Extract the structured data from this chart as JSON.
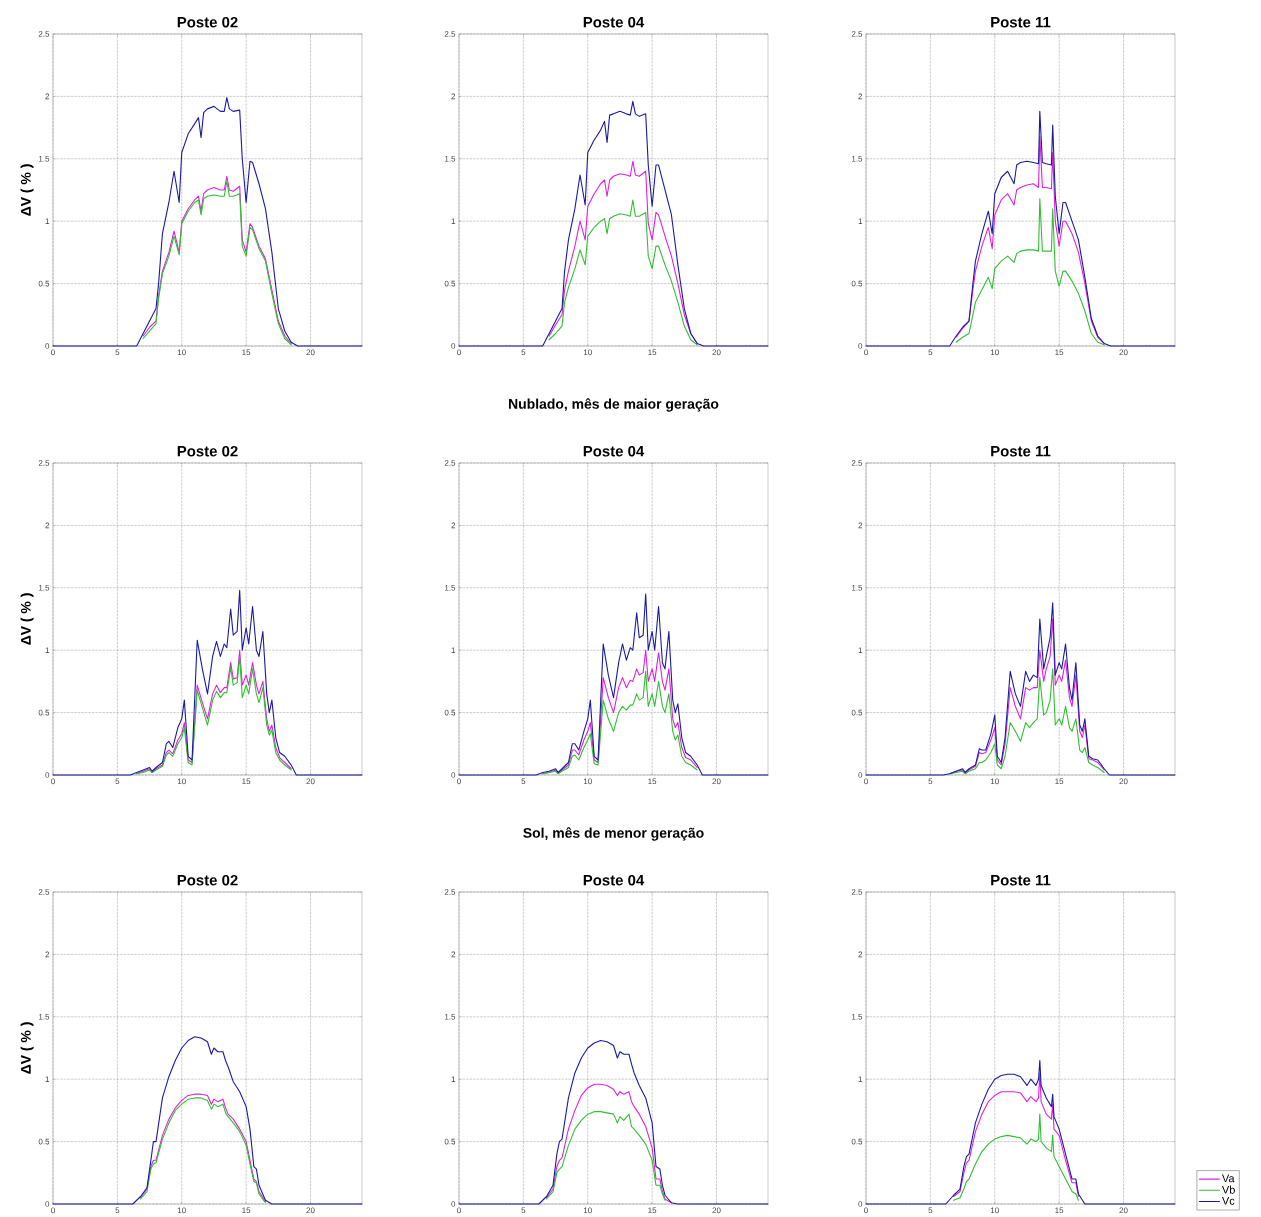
{
  "chart_data": [
    {
      "type": "line",
      "title": "Poste 02",
      "ylabel": "ΔV ( % )",
      "xlim": [
        0,
        24
      ],
      "ylim": [
        0,
        2.5
      ],
      "xticks": [
        0,
        5,
        10,
        15,
        20
      ],
      "yticks": [
        0,
        0.5,
        1,
        1.5,
        2,
        2.5
      ],
      "grid": true,
      "line_style": "solid",
      "x": [
        0,
        6.5,
        7,
        7.5,
        8,
        8.2,
        8.5,
        9,
        9.4,
        9.8,
        10,
        10.5,
        11,
        11.3,
        11.5,
        11.7,
        12,
        12.5,
        13,
        13.3,
        13.5,
        13.7,
        14,
        14.5,
        14.7,
        15,
        15.3,
        15.5,
        16,
        16.5,
        17,
        17.5,
        18,
        18.5,
        19,
        24
      ],
      "series": [
        {
          "color": "#e020e0",
          "values": [
            null,
            null,
            0.08,
            0.15,
            0.2,
            0.4,
            0.6,
            0.75,
            0.92,
            0.75,
            1.0,
            1.1,
            1.17,
            1.2,
            1.08,
            1.22,
            1.25,
            1.27,
            1.25,
            1.25,
            1.36,
            1.25,
            1.24,
            1.28,
            0.85,
            0.75,
            0.98,
            0.95,
            0.8,
            0.7,
            0.45,
            0.2,
            0.08,
            0.02,
            null,
            null
          ]
        },
        {
          "color": "#30c030",
          "values": [
            null,
            null,
            0.06,
            0.12,
            0.18,
            0.38,
            0.58,
            0.72,
            0.88,
            0.73,
            0.98,
            1.08,
            1.15,
            1.17,
            1.05,
            1.18,
            1.2,
            1.21,
            1.2,
            1.2,
            1.32,
            1.2,
            1.2,
            1.22,
            0.8,
            0.72,
            0.95,
            0.93,
            0.78,
            0.68,
            0.42,
            0.18,
            0.06,
            0.01,
            null,
            null
          ]
        },
        {
          "color": "#1a1aa0",
          "values": [
            0,
            0,
            0.1,
            0.2,
            0.3,
            0.5,
            0.9,
            1.15,
            1.4,
            1.15,
            1.55,
            1.7,
            1.78,
            1.83,
            1.67,
            1.87,
            1.9,
            1.92,
            1.88,
            1.88,
            1.99,
            1.9,
            1.88,
            1.89,
            1.5,
            1.15,
            1.48,
            1.47,
            1.3,
            1.1,
            0.75,
            0.3,
            0.12,
            0.03,
            0,
            0
          ]
        }
      ]
    },
    {
      "type": "line",
      "title": "Poste 04",
      "xlim": [
        0,
        24
      ],
      "ylim": [
        0,
        2.5
      ],
      "xticks": [
        0,
        5,
        10,
        15,
        20
      ],
      "yticks": [
        0,
        0.5,
        1,
        1.5,
        2,
        2.5
      ],
      "grid": true,
      "line_style": "solid",
      "x": [
        0,
        6.5,
        7,
        7.5,
        8,
        8.2,
        8.5,
        9,
        9.4,
        9.8,
        10,
        10.5,
        11,
        11.3,
        11.5,
        11.7,
        12,
        12.5,
        13,
        13.3,
        13.5,
        13.7,
        14,
        14.5,
        14.7,
        15,
        15.3,
        15.5,
        16,
        16.5,
        17,
        17.5,
        18,
        18.5,
        19,
        24
      ],
      "series": [
        {
          "color": "#e020e0",
          "values": [
            null,
            null,
            0.08,
            0.17,
            0.25,
            0.45,
            0.6,
            0.8,
            1.0,
            0.85,
            1.12,
            1.22,
            1.3,
            1.33,
            1.2,
            1.33,
            1.36,
            1.38,
            1.37,
            1.36,
            1.48,
            1.37,
            1.36,
            1.4,
            0.98,
            0.85,
            1.07,
            1.05,
            0.88,
            0.72,
            0.5,
            0.25,
            0.1,
            0.02,
            null,
            null
          ]
        },
        {
          "color": "#30c030",
          "values": [
            null,
            null,
            0.05,
            0.1,
            0.16,
            0.35,
            0.47,
            0.62,
            0.77,
            0.65,
            0.88,
            0.95,
            1.0,
            1.02,
            0.9,
            1.02,
            1.04,
            1.06,
            1.05,
            1.04,
            1.17,
            1.04,
            1.04,
            1.07,
            0.72,
            0.62,
            0.8,
            0.8,
            0.65,
            0.52,
            0.35,
            0.16,
            0.05,
            0.01,
            null,
            null
          ]
        },
        {
          "color": "#1a1aa0",
          "values": [
            0,
            0,
            0.1,
            0.2,
            0.3,
            0.6,
            0.85,
            1.1,
            1.37,
            1.13,
            1.55,
            1.65,
            1.73,
            1.8,
            1.63,
            1.85,
            1.86,
            1.88,
            1.86,
            1.85,
            1.96,
            1.86,
            1.84,
            1.86,
            1.45,
            1.12,
            1.45,
            1.45,
            1.25,
            1.05,
            0.65,
            0.3,
            0.1,
            0.02,
            0,
            0
          ]
        }
      ]
    },
    {
      "type": "line",
      "title": "Poste 11",
      "xlim": [
        0,
        24
      ],
      "ylim": [
        0,
        2.5
      ],
      "xticks": [
        0,
        5,
        10,
        15,
        20
      ],
      "yticks": [
        0,
        0.5,
        1,
        1.5,
        2,
        2.5
      ],
      "grid": true,
      "line_style": "solid",
      "x": [
        0,
        6.5,
        7,
        7.5,
        8,
        8.3,
        8.5,
        9,
        9.5,
        9.8,
        10,
        10.5,
        11,
        11.5,
        11.7,
        12,
        12.5,
        13,
        13.4,
        13.5,
        13.7,
        14,
        14.4,
        14.5,
        14.7,
        15,
        15.3,
        15.5,
        16,
        16.5,
        17,
        17.5,
        18,
        18.5,
        19,
        24
      ],
      "series": [
        {
          "color": "#e020e0",
          "values": [
            null,
            null,
            0.07,
            0.14,
            0.2,
            0.45,
            0.6,
            0.8,
            0.95,
            0.78,
            1.05,
            1.17,
            1.22,
            1.13,
            1.25,
            1.27,
            1.29,
            1.3,
            1.27,
            1.68,
            1.27,
            1.27,
            1.26,
            1.55,
            1.0,
            0.8,
            1.0,
            1.0,
            0.9,
            0.75,
            0.5,
            0.2,
            0.07,
            0.02,
            null,
            null
          ]
        },
        {
          "color": "#30c030",
          "values": [
            null,
            null,
            0.03,
            0.07,
            0.1,
            0.25,
            0.35,
            0.45,
            0.55,
            0.46,
            0.62,
            0.68,
            0.72,
            0.67,
            0.74,
            0.76,
            0.77,
            0.77,
            0.76,
            1.18,
            0.76,
            0.76,
            0.76,
            1.1,
            0.6,
            0.48,
            0.6,
            0.6,
            0.52,
            0.42,
            0.28,
            0.1,
            0.03,
            0.01,
            null,
            null
          ]
        },
        {
          "color": "#1a1aa0",
          "values": [
            0,
            0,
            0.08,
            0.15,
            0.2,
            0.5,
            0.68,
            0.9,
            1.08,
            0.9,
            1.22,
            1.35,
            1.4,
            1.3,
            1.45,
            1.47,
            1.48,
            1.47,
            1.46,
            1.88,
            1.47,
            1.46,
            1.45,
            1.77,
            1.2,
            0.9,
            1.15,
            1.15,
            1.0,
            0.85,
            0.55,
            0.22,
            0.08,
            0.02,
            0,
            0
          ]
        }
      ]
    },
    {
      "type": "line",
      "title": "Poste 02",
      "ylabel": "ΔV ( % )",
      "xlim": [
        0,
        24
      ],
      "ylim": [
        0,
        2.5
      ],
      "xticks": [
        0,
        5,
        10,
        15,
        20
      ],
      "yticks": [
        0,
        0.5,
        1,
        1.5,
        2,
        2.5
      ],
      "grid": true,
      "line_style": "solid",
      "x": [
        0,
        6,
        6.5,
        7,
        7.5,
        7.7,
        8,
        8.5,
        8.8,
        9,
        9.3,
        9.7,
        10,
        10.2,
        10.5,
        10.8,
        11.2,
        11.6,
        12,
        12.4,
        12.7,
        13,
        13.3,
        13.5,
        13.8,
        14,
        14.3,
        14.5,
        14.7,
        15,
        15.2,
        15.5,
        15.8,
        16,
        16.3,
        16.6,
        16.8,
        17,
        17.3,
        17.6,
        18,
        18.5,
        18.9,
        24
      ],
      "series": [
        {
          "color": "#e020e0",
          "values": [
            null,
            null,
            0.01,
            0.03,
            0.05,
            0.02,
            0.05,
            0.08,
            0.18,
            0.2,
            0.17,
            0.28,
            0.33,
            0.42,
            0.12,
            0.1,
            0.72,
            0.58,
            0.45,
            0.65,
            0.72,
            0.66,
            0.7,
            0.7,
            0.9,
            0.77,
            0.78,
            1.0,
            0.72,
            0.8,
            0.72,
            0.9,
            0.72,
            0.65,
            0.75,
            0.45,
            0.35,
            0.4,
            0.22,
            0.14,
            0.1,
            0.05,
            null,
            null
          ]
        },
        {
          "color": "#30c030",
          "values": [
            null,
            null,
            0.01,
            0.02,
            0.04,
            0.02,
            0.04,
            0.07,
            0.16,
            0.18,
            0.15,
            0.25,
            0.3,
            0.38,
            0.1,
            0.08,
            0.68,
            0.54,
            0.4,
            0.6,
            0.67,
            0.62,
            0.66,
            0.66,
            0.86,
            0.72,
            0.74,
            0.95,
            0.62,
            0.72,
            0.65,
            0.85,
            0.65,
            0.58,
            0.7,
            0.4,
            0.32,
            0.36,
            0.18,
            0.12,
            0.08,
            0.04,
            null,
            null
          ]
        },
        {
          "color": "#1a1aa0",
          "values": [
            0,
            0,
            0.02,
            0.04,
            0.06,
            0.03,
            0.06,
            0.1,
            0.25,
            0.27,
            0.22,
            0.38,
            0.45,
            0.6,
            0.15,
            0.12,
            1.08,
            0.85,
            0.65,
            0.95,
            1.07,
            0.95,
            1.05,
            1.02,
            1.33,
            1.12,
            1.15,
            1.48,
            1.0,
            1.18,
            1.05,
            1.35,
            1.0,
            0.95,
            1.15,
            0.65,
            0.5,
            0.6,
            0.3,
            0.18,
            0.15,
            0.08,
            0,
            0
          ]
        }
      ]
    },
    {
      "type": "line",
      "title": "Poste 04",
      "subtitle": "Nublado, mês de maior geração",
      "xlim": [
        0,
        24
      ],
      "ylim": [
        0,
        2.5
      ],
      "xticks": [
        0,
        5,
        10,
        15,
        20
      ],
      "yticks": [
        0,
        0.5,
        1,
        1.5,
        2,
        2.5
      ],
      "grid": true,
      "line_style": "solid",
      "x": [
        0,
        6,
        6.5,
        7,
        7.5,
        7.7,
        8,
        8.5,
        8.8,
        9,
        9.3,
        9.7,
        10,
        10.2,
        10.5,
        10.8,
        11.2,
        11.6,
        12,
        12.4,
        12.7,
        13,
        13.3,
        13.5,
        13.8,
        14,
        14.3,
        14.5,
        14.7,
        15,
        15.2,
        15.5,
        15.8,
        16,
        16.3,
        16.6,
        16.8,
        17,
        17.3,
        17.6,
        18,
        18.5,
        18.9,
        24
      ],
      "series": [
        {
          "color": "#e020e0",
          "values": [
            null,
            null,
            0.01,
            0.02,
            0.04,
            0.02,
            0.04,
            0.08,
            0.2,
            0.2,
            0.16,
            0.28,
            0.35,
            0.42,
            0.12,
            0.1,
            0.78,
            0.62,
            0.5,
            0.7,
            0.78,
            0.7,
            0.76,
            0.75,
            0.85,
            0.8,
            0.82,
            1.0,
            0.75,
            0.85,
            0.75,
            0.98,
            0.75,
            0.68,
            0.85,
            0.45,
            0.38,
            0.42,
            0.22,
            0.14,
            0.12,
            0.06,
            null,
            null
          ]
        },
        {
          "color": "#30c030",
          "values": [
            null,
            null,
            0.01,
            0.02,
            0.03,
            0.01,
            0.03,
            0.06,
            0.15,
            0.16,
            0.12,
            0.22,
            0.28,
            0.33,
            0.09,
            0.08,
            0.6,
            0.45,
            0.35,
            0.5,
            0.55,
            0.52,
            0.56,
            0.56,
            0.65,
            0.6,
            0.62,
            0.83,
            0.55,
            0.65,
            0.55,
            0.75,
            0.55,
            0.5,
            0.65,
            0.35,
            0.28,
            0.32,
            0.15,
            0.1,
            0.08,
            0.04,
            null,
            null
          ]
        },
        {
          "color": "#1a1aa0",
          "values": [
            0,
            0,
            0.02,
            0.03,
            0.05,
            0.02,
            0.05,
            0.1,
            0.25,
            0.25,
            0.2,
            0.35,
            0.45,
            0.6,
            0.15,
            0.12,
            1.05,
            0.8,
            0.62,
            0.9,
            1.05,
            0.92,
            1.02,
            1.0,
            1.3,
            1.1,
            1.12,
            1.45,
            1.0,
            1.15,
            1.0,
            1.35,
            0.9,
            0.85,
            1.15,
            0.6,
            0.5,
            0.57,
            0.3,
            0.18,
            0.15,
            0.08,
            0,
            0
          ]
        }
      ]
    },
    {
      "type": "line",
      "title": "Poste 11",
      "xlim": [
        0,
        24
      ],
      "ylim": [
        0,
        2.5
      ],
      "xticks": [
        0,
        5,
        10,
        15,
        20
      ],
      "yticks": [
        0,
        0.5,
        1,
        1.5,
        2,
        2.5
      ],
      "grid": true,
      "line_style": "solid",
      "x": [
        0,
        6,
        6.5,
        7,
        7.5,
        7.7,
        8,
        8.5,
        8.8,
        9,
        9.3,
        9.7,
        10,
        10.2,
        10.5,
        10.8,
        11.2,
        11.6,
        12,
        12.4,
        12.7,
        13,
        13.3,
        13.5,
        13.8,
        14,
        14.3,
        14.5,
        14.7,
        15,
        15.2,
        15.5,
        15.8,
        16,
        16.3,
        16.6,
        16.8,
        17,
        17.3,
        17.6,
        18,
        18.5,
        18.9,
        24
      ],
      "series": [
        {
          "color": "#e020e0",
          "values": [
            null,
            null,
            0.01,
            0.03,
            0.04,
            0.02,
            0.04,
            0.07,
            0.18,
            0.17,
            0.18,
            0.28,
            0.38,
            0.12,
            0.08,
            0.25,
            0.7,
            0.55,
            0.45,
            0.7,
            0.68,
            0.7,
            0.7,
            1.0,
            0.75,
            0.85,
            0.95,
            1.25,
            0.72,
            0.8,
            0.75,
            0.92,
            0.62,
            0.55,
            0.8,
            0.35,
            0.3,
            0.4,
            0.13,
            0.12,
            0.1,
            0.04,
            null,
            null
          ]
        },
        {
          "color": "#30c030",
          "values": [
            null,
            null,
            0.01,
            0.02,
            0.03,
            0.01,
            0.03,
            0.05,
            0.1,
            0.1,
            0.12,
            0.18,
            0.25,
            0.08,
            0.05,
            0.15,
            0.42,
            0.35,
            0.27,
            0.42,
            0.38,
            0.42,
            0.45,
            0.78,
            0.48,
            0.5,
            0.6,
            0.85,
            0.4,
            0.45,
            0.4,
            0.55,
            0.38,
            0.35,
            0.45,
            0.2,
            0.18,
            0.22,
            0.1,
            0.08,
            0.06,
            0.02,
            null,
            null
          ]
        },
        {
          "color": "#1a1aa0",
          "values": [
            0,
            0,
            0.01,
            0.03,
            0.05,
            0.02,
            0.05,
            0.08,
            0.21,
            0.2,
            0.2,
            0.33,
            0.48,
            0.15,
            0.1,
            0.3,
            0.83,
            0.65,
            0.55,
            0.83,
            0.75,
            0.8,
            0.78,
            1.25,
            0.85,
            0.95,
            1.1,
            1.38,
            0.8,
            0.9,
            0.85,
            1.05,
            0.7,
            0.6,
            0.9,
            0.4,
            0.35,
            0.45,
            0.15,
            0.13,
            0.12,
            0.05,
            0,
            0
          ]
        }
      ]
    },
    {
      "type": "line",
      "title": "Poste 02",
      "ylabel": "ΔV ( % )",
      "xlim": [
        0,
        24
      ],
      "ylim": [
        0,
        2.5
      ],
      "xticks": [
        0,
        5,
        10,
        15,
        20
      ],
      "yticks": [
        0,
        0.5,
        1,
        1.5,
        2,
        2.5
      ],
      "grid": true,
      "line_style": "solid",
      "x": [
        0,
        6.2,
        6.8,
        7.3,
        7.6,
        7.8,
        8,
        8.5,
        9,
        9.5,
        10,
        10.5,
        11,
        11.5,
        12,
        12.3,
        12.5,
        12.8,
        13.2,
        13.4,
        13.6,
        14,
        14.5,
        15,
        15.3,
        15.6,
        15.8,
        16,
        16.5,
        17,
        24
      ],
      "series": [
        {
          "color": "#e020e0",
          "values": [
            null,
            null,
            0.05,
            0.12,
            0.3,
            0.35,
            0.35,
            0.55,
            0.68,
            0.77,
            0.83,
            0.87,
            0.88,
            0.88,
            0.87,
            0.8,
            0.84,
            0.82,
            0.84,
            0.77,
            0.72,
            0.68,
            0.6,
            0.5,
            0.35,
            0.2,
            0.18,
            0.1,
            0.02,
            null,
            null
          ]
        },
        {
          "color": "#30c030",
          "values": [
            null,
            null,
            0.04,
            0.1,
            0.28,
            0.32,
            0.33,
            0.52,
            0.65,
            0.75,
            0.8,
            0.84,
            0.85,
            0.85,
            0.83,
            0.76,
            0.8,
            0.78,
            0.8,
            0.73,
            0.7,
            0.65,
            0.58,
            0.47,
            0.32,
            0.18,
            0.17,
            0.08,
            0.01,
            null,
            null
          ]
        },
        {
          "color": "#1a1aa0",
          "values": [
            0,
            0,
            0.06,
            0.13,
            0.35,
            0.5,
            0.5,
            0.85,
            1.02,
            1.15,
            1.25,
            1.31,
            1.34,
            1.33,
            1.3,
            1.2,
            1.25,
            1.22,
            1.22,
            1.15,
            1.1,
            0.98,
            0.9,
            0.78,
            0.6,
            0.3,
            0.28,
            0.15,
            0.03,
            0,
            0
          ]
        }
      ]
    },
    {
      "type": "line",
      "title": "Poste 04",
      "subtitle": "Sol, mês de menor geração",
      "xlim": [
        0,
        24
      ],
      "ylim": [
        0,
        2.5
      ],
      "xticks": [
        0,
        5,
        10,
        15,
        20
      ],
      "yticks": [
        0,
        0.5,
        1,
        1.5,
        2,
        2.5
      ],
      "grid": true,
      "line_style": "solid",
      "x": [
        0,
        6.2,
        6.8,
        7.3,
        7.6,
        7.8,
        8,
        8.5,
        9,
        9.5,
        10,
        10.5,
        11,
        11.5,
        12,
        12.3,
        12.5,
        12.8,
        13.2,
        13.4,
        13.6,
        14,
        14.5,
        15,
        15.3,
        15.6,
        15.8,
        16,
        16.5,
        17,
        24
      ],
      "series": [
        {
          "color": "#e020e0",
          "values": [
            null,
            null,
            0.05,
            0.12,
            0.3,
            0.35,
            0.37,
            0.6,
            0.75,
            0.87,
            0.93,
            0.96,
            0.96,
            0.95,
            0.92,
            0.87,
            0.9,
            0.88,
            0.9,
            0.82,
            0.78,
            0.72,
            0.62,
            0.45,
            0.2,
            0.2,
            0.1,
            0.04,
            0.01,
            null,
            null
          ]
        },
        {
          "color": "#30c030",
          "values": [
            null,
            null,
            0.04,
            0.1,
            0.25,
            0.28,
            0.3,
            0.47,
            0.6,
            0.67,
            0.72,
            0.74,
            0.74,
            0.73,
            0.72,
            0.65,
            0.7,
            0.67,
            0.72,
            0.62,
            0.6,
            0.55,
            0.48,
            0.35,
            0.15,
            0.15,
            0.08,
            0.03,
            null,
            null,
            null
          ]
        },
        {
          "color": "#1a1aa0",
          "values": [
            0,
            0,
            0.06,
            0.15,
            0.4,
            0.5,
            0.52,
            0.85,
            1.05,
            1.17,
            1.25,
            1.29,
            1.31,
            1.3,
            1.27,
            1.17,
            1.22,
            1.2,
            1.2,
            1.12,
            1.05,
            0.95,
            0.85,
            0.65,
            0.3,
            0.28,
            0.15,
            0.07,
            0.01,
            0,
            0
          ]
        }
      ]
    },
    {
      "type": "line",
      "title": "Poste 11",
      "xlim": [
        0,
        24
      ],
      "ylim": [
        0,
        2.5
      ],
      "xticks": [
        0,
        5,
        10,
        15,
        20
      ],
      "yticks": [
        0,
        0.5,
        1,
        1.5,
        2,
        2.5
      ],
      "grid": true,
      "line_style": "solid",
      "legend": "bottom right",
      "x": [
        0,
        6.2,
        6.8,
        7.3,
        7.6,
        7.8,
        8,
        8.5,
        9,
        9.5,
        10,
        10.5,
        11,
        11.5,
        12,
        12.5,
        12.8,
        13.2,
        13.4,
        13.5,
        13.6,
        14,
        14.4,
        14.5,
        14.6,
        15,
        15.5,
        16,
        16.3,
        16.5,
        17,
        24
      ],
      "series": [
        {
          "name": "Va",
          "color": "#e020e0",
          "values": [
            null,
            null,
            0.06,
            0.1,
            0.25,
            0.33,
            0.35,
            0.58,
            0.72,
            0.82,
            0.87,
            0.9,
            0.9,
            0.9,
            0.89,
            0.82,
            0.86,
            0.82,
            0.85,
            1.05,
            0.82,
            0.72,
            0.68,
            0.8,
            0.6,
            0.55,
            0.35,
            0.17,
            0.17,
            0.06,
            null,
            null
          ]
        },
        {
          "name": "Vb",
          "color": "#30c030",
          "values": [
            null,
            null,
            0.03,
            0.05,
            0.12,
            0.18,
            0.2,
            0.32,
            0.42,
            0.48,
            0.52,
            0.54,
            0.55,
            0.54,
            0.53,
            0.48,
            0.52,
            0.5,
            0.52,
            0.72,
            0.5,
            0.45,
            0.42,
            0.55,
            0.38,
            0.3,
            0.2,
            0.1,
            0.08,
            0.03,
            null,
            null
          ]
        },
        {
          "name": "Vc",
          "color": "#1a1aa0",
          "values": [
            0,
            0,
            0.07,
            0.12,
            0.3,
            0.38,
            0.4,
            0.65,
            0.8,
            0.92,
            1.0,
            1.03,
            1.04,
            1.04,
            1.02,
            0.95,
            1.0,
            0.95,
            1.0,
            1.15,
            0.95,
            0.85,
            0.78,
            0.88,
            0.7,
            0.6,
            0.4,
            0.2,
            0.2,
            0.08,
            0,
            0
          ]
        }
      ]
    }
  ]
}
